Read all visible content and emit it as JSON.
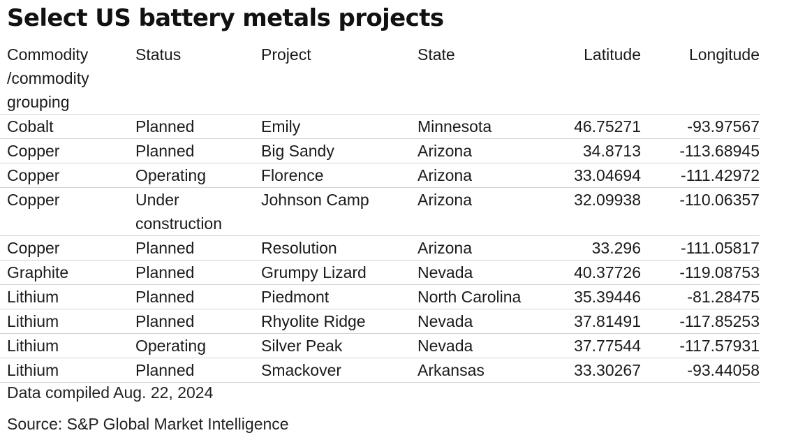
{
  "title": "Select US battery metals projects",
  "columns": [
    "Commodity /commodity grouping",
    "Status",
    "Project",
    "State",
    "Latitude",
    "Longitude"
  ],
  "rows": [
    [
      "Cobalt",
      "Planned",
      "Emily",
      "Minnesota",
      "46.75271",
      "-93.97567"
    ],
    [
      "Copper",
      "Planned",
      "Big Sandy",
      "Arizona",
      "34.8713",
      "-113.68945"
    ],
    [
      "Copper",
      "Operating",
      "Florence",
      "Arizona",
      "33.04694",
      "-111.42972"
    ],
    [
      "Copper",
      "Under construction",
      "Johnson Camp",
      "Arizona",
      "32.09938",
      "-110.06357"
    ],
    [
      "Copper",
      "Planned",
      "Resolution",
      "Arizona",
      "33.296",
      "-111.05817"
    ],
    [
      "Graphite",
      "Planned",
      "Grumpy Lizard",
      "Nevada",
      "40.37726",
      "-119.08753"
    ],
    [
      "Lithium",
      "Planned",
      "Piedmont",
      "North Carolina",
      "35.39446",
      "-81.28475"
    ],
    [
      "Lithium",
      "Planned",
      "Rhyolite Ridge",
      "Nevada",
      "37.81491",
      "-117.85253"
    ],
    [
      "Lithium",
      "Operating",
      "Silver Peak",
      "Nevada",
      "37.77544",
      "-117.57931"
    ],
    [
      "Lithium",
      "Planned",
      "Smackover",
      "Arkansas",
      "33.30267",
      "-93.44058"
    ]
  ],
  "footnote": "Data compiled Aug. 22, 2024",
  "source": "Source: S&P Global Market Intelligence"
}
